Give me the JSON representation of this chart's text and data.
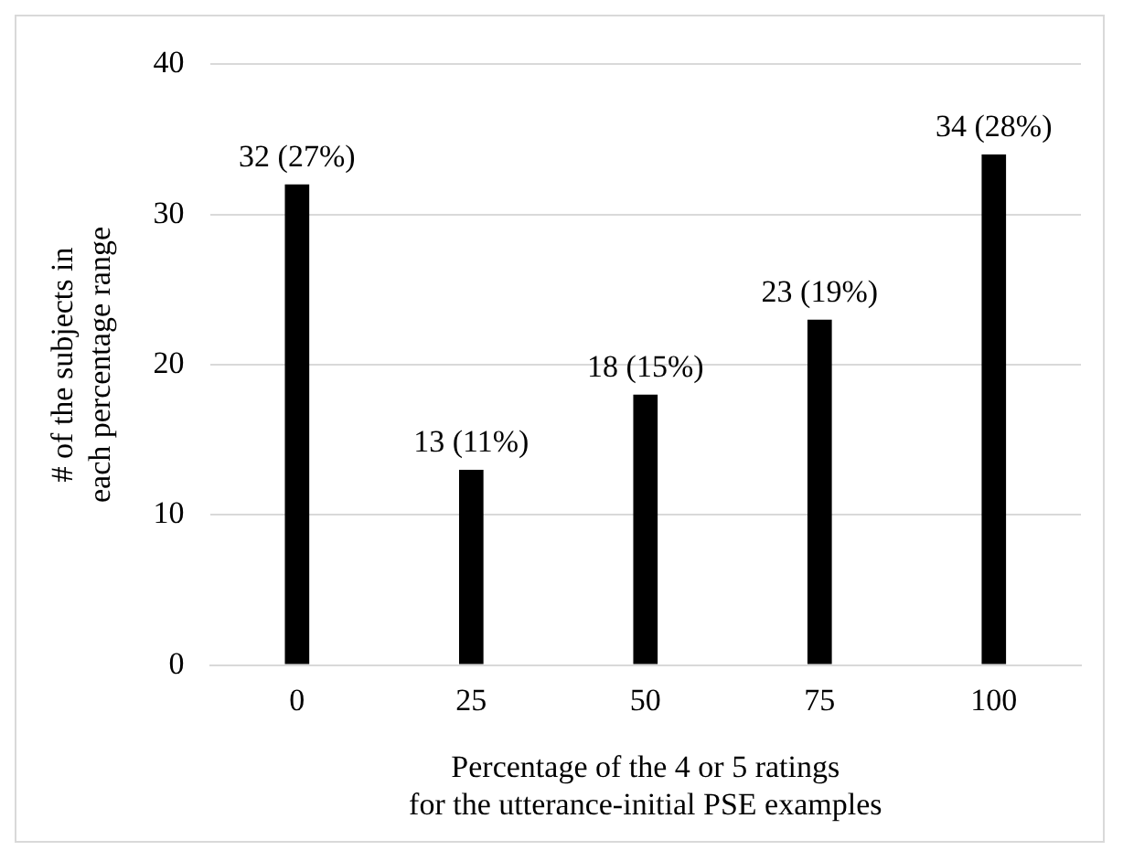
{
  "chart_data": {
    "type": "bar",
    "xlabel": "Percentage of the 4 or 5 ratings\nfor the utterance-initial PSE examples",
    "ylabel": "# of the subjects in\neach percentage range",
    "categories": [
      "0",
      "25",
      "50",
      "75",
      "100"
    ],
    "values": [
      32,
      13,
      18,
      23,
      34
    ],
    "color": "#000000",
    "value_labels": [
      "32 (27%)",
      "13 (11%)",
      "18 (15%)",
      "23 (19%)",
      "34 (28%)"
    ],
    "ylim": [
      0,
      40
    ],
    "yticks": [
      0,
      10,
      20,
      30,
      40
    ],
    "grid": "y",
    "legend": false
  }
}
